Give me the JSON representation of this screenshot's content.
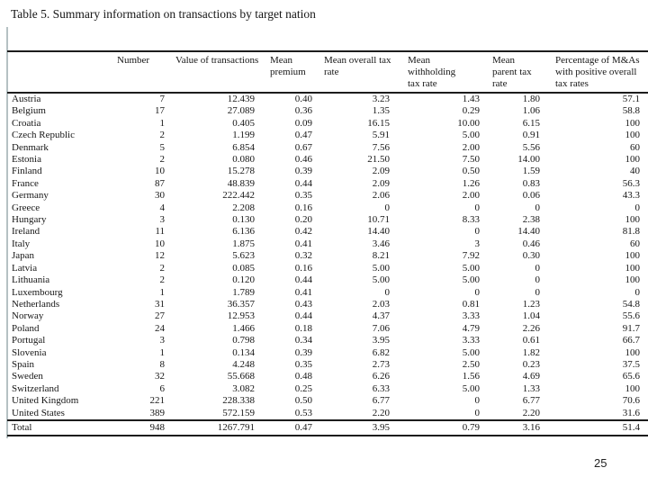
{
  "title": "Table 5. Summary information on transactions by target nation",
  "page_number": "25",
  "table": {
    "columns": [
      "",
      "Number",
      "Value of transactions",
      "Mean premium",
      "Mean overall tax rate",
      "Mean withholding tax rate",
      "Mean parent tax rate",
      "Percentage of M&As with positive overall tax rates"
    ],
    "rows": [
      [
        "Austria",
        "7",
        "12.439",
        "0.40",
        "3.23",
        "1.43",
        "1.80",
        "57.1"
      ],
      [
        "Belgium",
        "17",
        "27.089",
        "0.36",
        "1.35",
        "0.29",
        "1.06",
        "58.8"
      ],
      [
        "Croatia",
        "1",
        "0.405",
        "0.09",
        "16.15",
        "10.00",
        "6.15",
        "100"
      ],
      [
        "Czech Republic",
        "2",
        "1.199",
        "0.47",
        "5.91",
        "5.00",
        "0.91",
        "100"
      ],
      [
        "Denmark",
        "5",
        "6.854",
        "0.67",
        "7.56",
        "2.00",
        "5.56",
        "60"
      ],
      [
        "Estonia",
        "2",
        "0.080",
        "0.46",
        "21.50",
        "7.50",
        "14.00",
        "100"
      ],
      [
        "Finland",
        "10",
        "15.278",
        "0.39",
        "2.09",
        "0.50",
        "1.59",
        "40"
      ],
      [
        "France",
        "87",
        "48.839",
        "0.44",
        "2.09",
        "1.26",
        "0.83",
        "56.3"
      ],
      [
        "Germany",
        "30",
        "222.442",
        "0.35",
        "2.06",
        "2.00",
        "0.06",
        "43.3"
      ],
      [
        "Greece",
        "4",
        "2.208",
        "0.16",
        "0",
        "0",
        "0",
        "0"
      ],
      [
        "Hungary",
        "3",
        "0.130",
        "0.20",
        "10.71",
        "8.33",
        "2.38",
        "100"
      ],
      [
        "Ireland",
        "11",
        "6.136",
        "0.42",
        "14.40",
        "0",
        "14.40",
        "81.8"
      ],
      [
        "Italy",
        "10",
        "1.875",
        "0.41",
        "3.46",
        "3",
        "0.46",
        "60"
      ],
      [
        "Japan",
        "12",
        "5.623",
        "0.32",
        "8.21",
        "7.92",
        "0.30",
        "100"
      ],
      [
        "Latvia",
        "2",
        "0.085",
        "0.16",
        "5.00",
        "5.00",
        "0",
        "100"
      ],
      [
        "Lithuania",
        "2",
        "0.120",
        "0.44",
        "5.00",
        "5.00",
        "0",
        "100"
      ],
      [
        "Luxembourg",
        "1",
        "1.789",
        "0.41",
        "0",
        "0",
        "0",
        "0"
      ],
      [
        "Netherlands",
        "31",
        "36.357",
        "0.43",
        "2.03",
        "0.81",
        "1.23",
        "54.8"
      ],
      [
        "Norway",
        "27",
        "12.953",
        "0.44",
        "4.37",
        "3.33",
        "1.04",
        "55.6"
      ],
      [
        "Poland",
        "24",
        "1.466",
        "0.18",
        "7.06",
        "4.79",
        "2.26",
        "91.7"
      ],
      [
        "Portugal",
        "3",
        "0.798",
        "0.34",
        "3.95",
        "3.33",
        "0.61",
        "66.7"
      ],
      [
        "Slovenia",
        "1",
        "0.134",
        "0.39",
        "6.82",
        "5.00",
        "1.82",
        "100"
      ],
      [
        "Spain",
        "8",
        "4.248",
        "0.35",
        "2.73",
        "2.50",
        "0.23",
        "37.5"
      ],
      [
        "Sweden",
        "32",
        "55.668",
        "0.48",
        "6.26",
        "1.56",
        "4.69",
        "65.6"
      ],
      [
        "Switzerland",
        "6",
        "3.082",
        "0.25",
        "6.33",
        "5.00",
        "1.33",
        "100"
      ],
      [
        "United Kingdom",
        "221",
        "228.338",
        "0.50",
        "6.77",
        "0",
        "6.77",
        "70.6"
      ],
      [
        "United States",
        "389",
        "572.159",
        "0.53",
        "2.20",
        "0",
        "2.20",
        "31.6"
      ]
    ],
    "total_row": [
      "Total",
      "948",
      "1267.791",
      "0.47",
      "3.95",
      "0.79",
      "3.16",
      "51.4"
    ]
  }
}
